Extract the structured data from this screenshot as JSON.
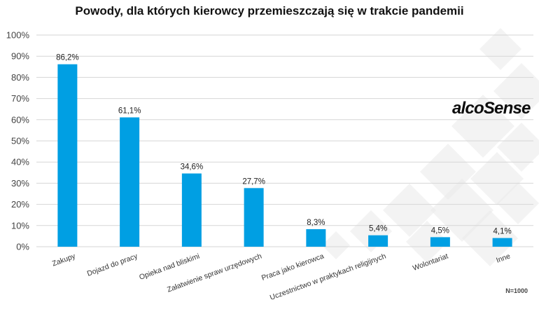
{
  "title": "Powody, dla których kierowcy przemieszczają się w trakcie pandemii",
  "logo_text": "alcoSense",
  "note": "N=1000",
  "colors": {
    "bar": "#009fe3",
    "grid": "#d6d6d6",
    "decoration": "#e9e9e9"
  },
  "chart_data": {
    "type": "bar",
    "categories": [
      "Zakupy",
      "Dojazd do pracy",
      "Opieka nad bliskimi",
      "Załatwienie spraw urzędowych",
      "Praca jako kierowca",
      "Uczestnictwo w praktykach religijnych",
      "Wolontariat",
      "Inne"
    ],
    "values": [
      86.2,
      61.1,
      34.6,
      27.7,
      8.3,
      5.4,
      4.5,
      4.1
    ],
    "data_labels": [
      "86,2%",
      "61,1%",
      "34,6%",
      "27,7%",
      "8,3%",
      "5,4%",
      "4,5%",
      "4,1%"
    ],
    "ylim": [
      0,
      100
    ],
    "yticks": [
      0,
      10,
      20,
      30,
      40,
      50,
      60,
      70,
      80,
      90,
      100
    ],
    "ytick_labels": [
      "0%",
      "10%",
      "20%",
      "30%",
      "40%",
      "50%",
      "60%",
      "70%",
      "80%",
      "90%",
      "100%"
    ],
    "grid": true,
    "xlabel": "",
    "ylabel": ""
  }
}
